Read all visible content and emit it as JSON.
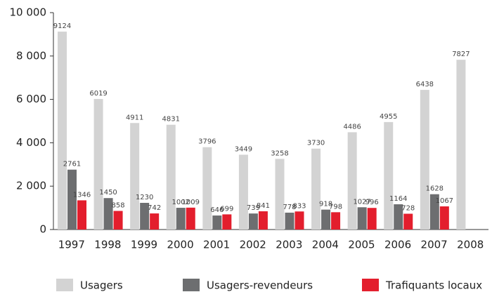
{
  "chart_data": {
    "type": "bar",
    "categories": [
      "1997",
      "1998",
      "1999",
      "2000",
      "2001",
      "2002",
      "2003",
      "2004",
      "2005",
      "2006",
      "2007",
      "2008"
    ],
    "series": [
      {
        "name": "Usagers",
        "color": "#d3d3d3",
        "values": [
          9124,
          6019,
          4911,
          4831,
          3796,
          3449,
          3258,
          3730,
          4486,
          4955,
          6438,
          7827
        ]
      },
      {
        "name": "Usagers-revendeurs",
        "color": "#6d6e70",
        "values": [
          2761,
          1450,
          1230,
          1002,
          646,
          739,
          778,
          918,
          1027,
          1164,
          1628,
          null
        ]
      },
      {
        "name": "Trafiquants locaux",
        "color": "#e31e2d",
        "values": [
          1346,
          858,
          742,
          1009,
          699,
          841,
          833,
          798,
          996,
          728,
          1067,
          null
        ]
      }
    ],
    "ylim": [
      0,
      10000
    ],
    "yticks": [
      0,
      {
        "value": 2000,
        "label": "2 000"
      },
      {
        "value": 4000,
        "label": "4 000"
      },
      {
        "value": 6000,
        "label": "6 000"
      },
      {
        "value": 8000,
        "label": "8 000"
      },
      {
        "value": 10000,
        "label": "10 000"
      }
    ]
  }
}
